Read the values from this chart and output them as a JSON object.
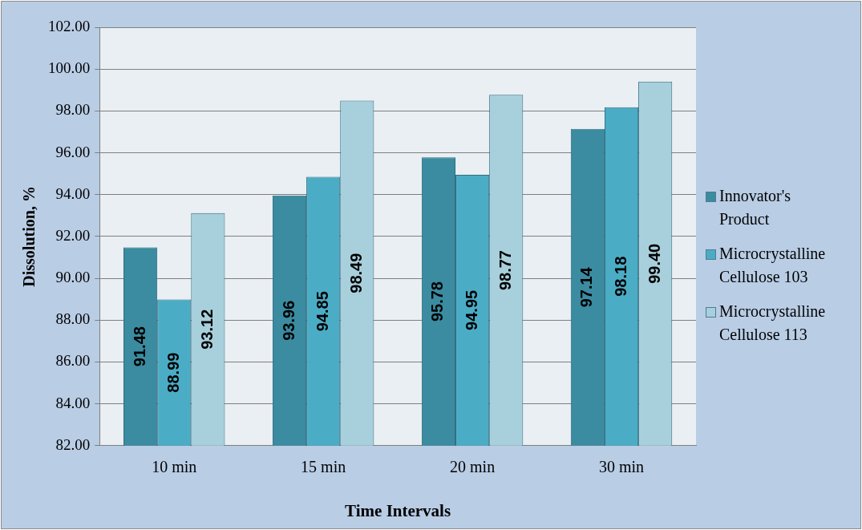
{
  "chart_data": {
    "type": "bar",
    "xlabel": "Time Intervals",
    "ylabel": "Dissolution, %",
    "categories": [
      "10 min",
      "15 min",
      "20 min",
      "30 min"
    ],
    "series": [
      {
        "name": "Innovator's Product",
        "color": "#3b8ba1",
        "values": [
          91.48,
          93.96,
          95.78,
          97.14
        ],
        "value_labels": [
          "91.48",
          "93.96",
          "95.78",
          "97.14"
        ]
      },
      {
        "name": "Microcrystalline Cellulose 103",
        "color": "#4bacc6",
        "values": [
          88.99,
          94.85,
          94.95,
          98.18
        ],
        "value_labels": [
          "88.99",
          "94.85",
          "94.95",
          "98.18"
        ]
      },
      {
        "name": "Microcrystalline Cellulose 113",
        "color": "#a8cfdc",
        "values": [
          93.12,
          98.49,
          98.77,
          99.4
        ],
        "value_labels": [
          "93.12",
          "98.49",
          "98.77",
          "99.40"
        ]
      }
    ],
    "ylim": [
      82,
      102
    ],
    "yticks": [
      {
        "value": 82,
        "label": "82.00"
      },
      {
        "value": 84,
        "label": "84.00"
      },
      {
        "value": 86,
        "label": "86.00"
      },
      {
        "value": 88,
        "label": "88.00"
      },
      {
        "value": 90,
        "label": "90.00"
      },
      {
        "value": 92,
        "label": "92.00"
      },
      {
        "value": 94,
        "label": "94.00"
      },
      {
        "value": 96,
        "label": "96.00"
      },
      {
        "value": 98,
        "label": "98.00"
      },
      {
        "value": 100,
        "label": "100.00"
      },
      {
        "value": 102,
        "label": "102.00"
      }
    ],
    "grid": "y",
    "legend": "right"
  }
}
